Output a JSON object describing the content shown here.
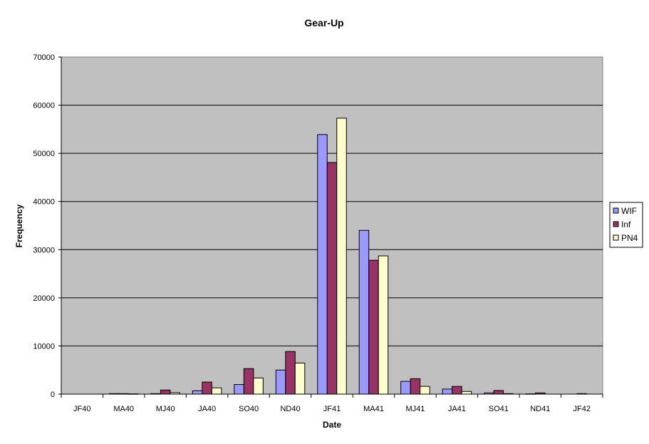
{
  "chart_data": {
    "type": "bar",
    "title": "Gear-Up",
    "xlabel": "Date",
    "ylabel": "Frequency",
    "ylim": [
      0,
      70000
    ],
    "yticks": [
      0,
      10000,
      20000,
      30000,
      40000,
      50000,
      60000,
      70000
    ],
    "grid": true,
    "legend_position": "right",
    "categories": [
      "JF40",
      "MA40",
      "MJ40",
      "JA40",
      "SO40",
      "ND40",
      "JF41",
      "MA41",
      "MJ41",
      "JA41",
      "SO41",
      "ND41",
      "JF42"
    ],
    "series": [
      {
        "name": "WIF",
        "color": "#9999FF",
        "values": [
          0,
          100,
          100,
          700,
          2000,
          5000,
          53900,
          34000,
          2650,
          1050,
          250,
          50,
          0
        ]
      },
      {
        "name": "Inf",
        "color": "#993366",
        "values": [
          0,
          100,
          850,
          2500,
          5300,
          8850,
          48100,
          27800,
          3200,
          1600,
          750,
          250,
          100
        ]
      },
      {
        "name": "PN4",
        "color": "#FFFFCC",
        "values": [
          0,
          50,
          300,
          1300,
          3350,
          6450,
          57300,
          28700,
          1600,
          550,
          100,
          0,
          0
        ]
      }
    ],
    "plot_background": "#C0C0C0"
  }
}
